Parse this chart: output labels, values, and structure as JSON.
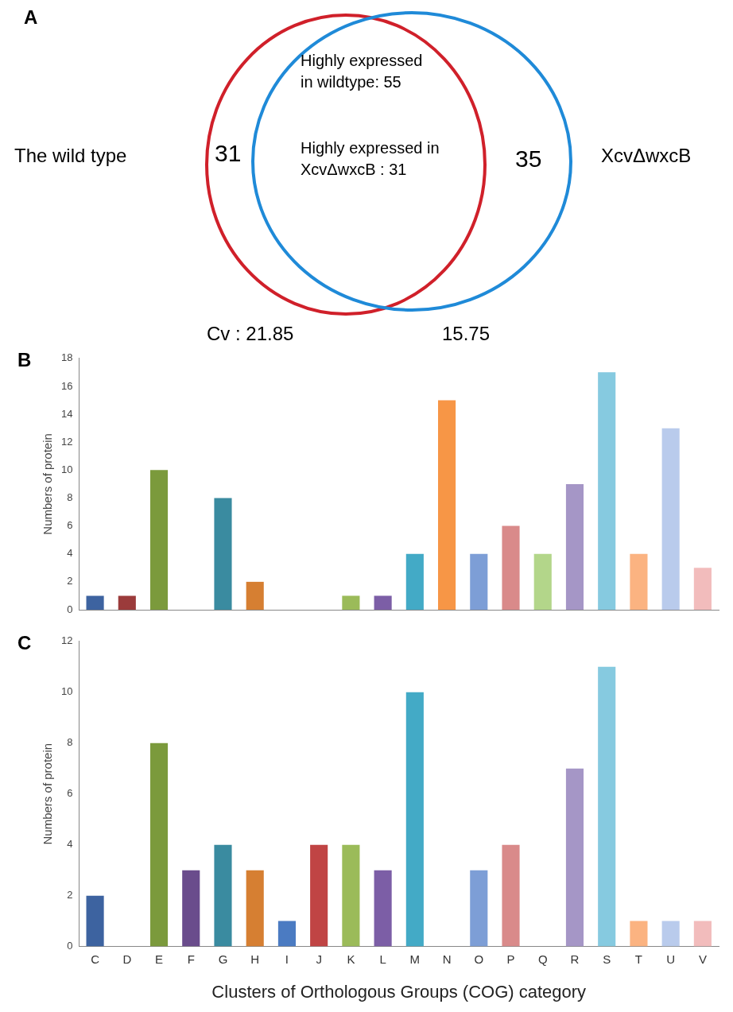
{
  "chart_data": [
    {
      "type": "other",
      "title": "A",
      "annotations": [
        "The wild type",
        "31",
        "Highly expressed in wildtype: 55",
        "Highly expressed in XcvΔwxcB : 31",
        "35",
        "XcvΔwxcB",
        "Cv :  21.85",
        "15.75"
      ]
    },
    {
      "type": "bar",
      "title": "B",
      "ylabel": "Numbers of protein",
      "categories": [
        null,
        null,
        null,
        null,
        null,
        null,
        null,
        null,
        null,
        null,
        null,
        null,
        null,
        null,
        null,
        null,
        null,
        null,
        null,
        null
      ],
      "values": [
        1,
        1,
        10,
        0,
        8,
        2,
        0,
        0,
        1,
        1,
        4,
        15,
        4,
        6,
        4,
        9,
        17,
        4,
        13,
        3
      ],
      "colors": [
        "#3d63a0",
        "#9b3b3b",
        "#7b9a3c",
        "#6a4c8c",
        "#3a8ba0",
        "#d67f32",
        "#4b7bc2",
        "#c04444",
        "#9bbb59",
        "#7c5ea6",
        "#43aac6",
        "#f79646",
        "#7d9ed6",
        "#d98a8a",
        "#b3d68a",
        "#a596c6",
        "#86cae0",
        "#fbb381",
        "#b9cbec",
        "#f2bcbc"
      ],
      "ylim": [
        0,
        18
      ],
      "yticks": [
        0,
        2,
        4,
        6,
        8,
        10,
        12,
        14,
        16,
        18
      ],
      "grid": false
    },
    {
      "type": "bar",
      "title": "C",
      "ylabel": "Numbers of protein",
      "xlabel": "Clusters of Orthologous Groups (COG) category",
      "categories": [
        "C",
        "D",
        "E",
        "F",
        "G",
        "H",
        "I",
        "J",
        "K",
        "L",
        "M",
        "N",
        "O",
        "P",
        "Q",
        "R",
        "S",
        "T",
        "U",
        "V"
      ],
      "values": [
        2,
        0,
        8,
        3,
        4,
        3,
        1,
        4,
        4,
        3,
        10,
        0,
        3,
        4,
        0,
        7,
        11,
        1,
        1,
        1
      ],
      "colors": [
        "#3d63a0",
        "#9b3b3b",
        "#7b9a3c",
        "#6a4c8c",
        "#3a8ba0",
        "#d67f32",
        "#4b7bc2",
        "#c04444",
        "#9bbb59",
        "#7c5ea6",
        "#43aac6",
        "#f79646",
        "#7d9ed6",
        "#d98a8a",
        "#b3d68a",
        "#a596c6",
        "#86cae0",
        "#fbb381",
        "#b9cbec",
        "#f2bcbc"
      ],
      "ylim": [
        0,
        12
      ],
      "yticks": [
        0,
        2,
        4,
        6,
        8,
        10,
        12
      ],
      "grid": false
    }
  ]
}
